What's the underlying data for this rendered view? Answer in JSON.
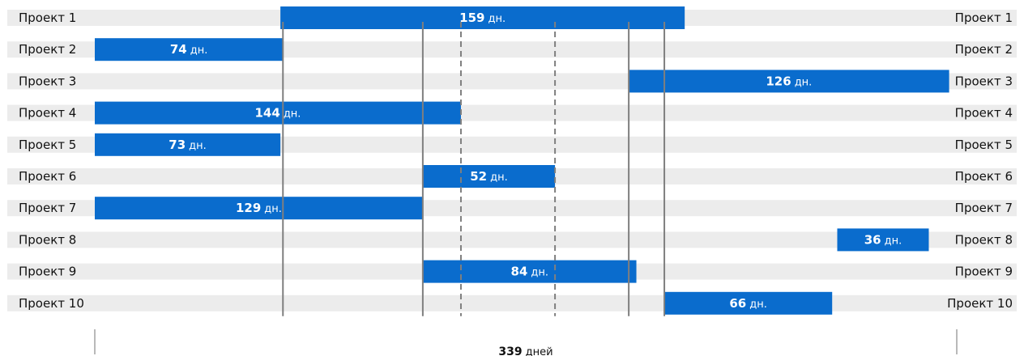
{
  "chart_data": {
    "type": "bar",
    "orientation": "horizontal-timeline",
    "unit_short": "дн.",
    "total": {
      "value": 339,
      "unit": "дней"
    },
    "xlim": [
      0,
      339
    ],
    "projects": [
      {
        "label": "Проект 1",
        "start": 73,
        "duration": 159
      },
      {
        "label": "Проект 2",
        "start": 0,
        "duration": 74
      },
      {
        "label": "Проект 3",
        "start": 210,
        "duration": 126
      },
      {
        "label": "Проект 4",
        "start": 0,
        "duration": 144
      },
      {
        "label": "Проект 5",
        "start": 0,
        "duration": 73
      },
      {
        "label": "Проект 6",
        "start": 129,
        "duration": 52
      },
      {
        "label": "Проект 7",
        "start": 0,
        "duration": 129
      },
      {
        "label": "Проект 8",
        "start": 292,
        "duration": 36
      },
      {
        "label": "Проект 9",
        "start": 129,
        "duration": 84
      },
      {
        "label": "Проект 10",
        "start": 224,
        "duration": 66
      }
    ],
    "gridlines_solid": [
      74,
      129,
      210,
      224
    ],
    "gridlines_dashed": [
      144,
      181
    ],
    "colors": {
      "bar": "#0a6ccd",
      "row": "#ececec",
      "grid": "#7f7f7f"
    }
  }
}
